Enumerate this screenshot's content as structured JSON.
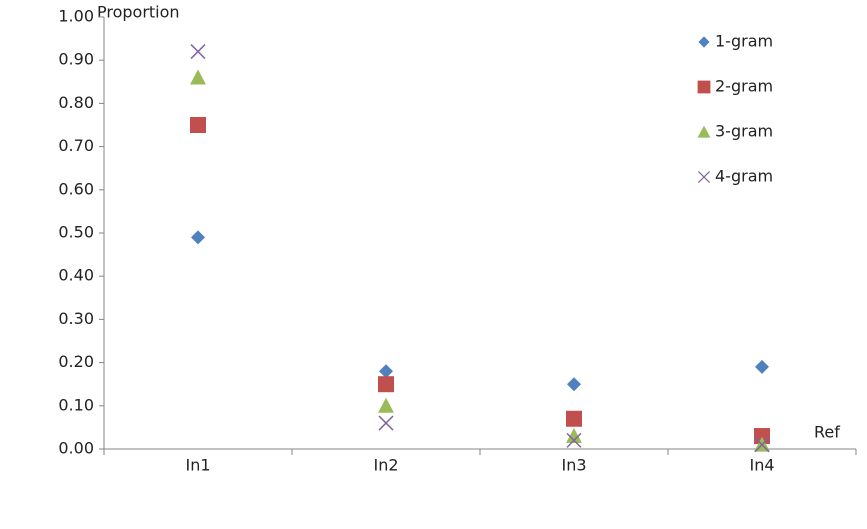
{
  "chart_data": {
    "type": "scatter",
    "y_label": "Proportion",
    "x_label": "Ref",
    "categories": [
      "In1",
      "In2",
      "In3",
      "In4"
    ],
    "series": [
      {
        "name": "1-gram",
        "color": "#4f81bd",
        "marker": "diamond",
        "values": [
          0.49,
          0.18,
          0.15,
          0.19
        ]
      },
      {
        "name": "2-gram",
        "color": "#c0504d",
        "marker": "square",
        "values": [
          0.75,
          0.15,
          0.07,
          0.03
        ]
      },
      {
        "name": "3-gram",
        "color": "#9bbb59",
        "marker": "triangle",
        "values": [
          0.86,
          0.1,
          0.03,
          0.01
        ]
      },
      {
        "name": "4-gram",
        "color": "#8064a2",
        "marker": "x",
        "values": [
          0.92,
          0.06,
          0.02,
          0.01
        ]
      }
    ],
    "ylim": [
      0,
      1
    ],
    "yticks": [
      {
        "value": 0,
        "label": "0.00"
      },
      {
        "value": 0.1,
        "label": "0.10"
      },
      {
        "value": 0.2,
        "label": "0.20"
      },
      {
        "value": 0.3,
        "label": "0.30"
      },
      {
        "value": 0.4,
        "label": "0.40"
      },
      {
        "value": 0.5,
        "label": "0.50"
      },
      {
        "value": 0.6,
        "label": "0.60"
      },
      {
        "value": 0.7,
        "label": "0.70"
      },
      {
        "value": 0.8,
        "label": "0.80"
      },
      {
        "value": 0.9,
        "label": "0.90"
      },
      {
        "value": 1,
        "label": "1.00"
      }
    ],
    "grid": false,
    "legend": "top-right"
  }
}
